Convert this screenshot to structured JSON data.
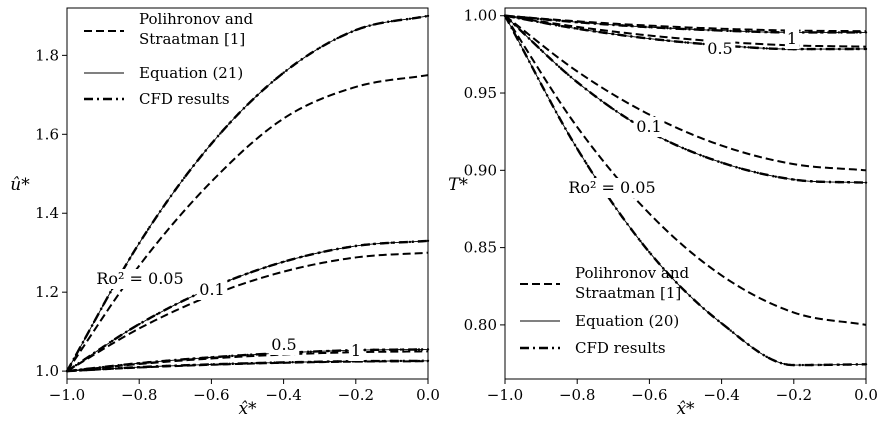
{
  "chart_data": [
    {
      "type": "line",
      "panel": "left",
      "xlabel": "x̂*",
      "ylabel": "û*",
      "xlim": [
        -1.0,
        0.0
      ],
      "ylim": [
        0.98,
        1.92
      ],
      "xticks": [
        "−1.0",
        "−0.8",
        "−0.6",
        "−0.4",
        "−0.2",
        "0.0"
      ],
      "yticks": [
        "1.0",
        "1.2",
        "1.4",
        "1.6",
        "1.8"
      ],
      "legend_position": "top-left",
      "legend": [
        "Polihronov and Straatman [1]",
        "Equation (21)",
        "CFD results"
      ],
      "series": [
        {
          "name": "Ro² = 0.05",
          "x": [
            -1.0,
            -0.8,
            -0.6,
            -0.4,
            -0.2,
            0.0
          ],
          "polihronov": [
            1.0,
            1.267,
            1.48,
            1.64,
            1.72,
            1.75
          ],
          "equation": [
            1.0,
            1.324,
            1.576,
            1.756,
            1.864,
            1.9
          ]
        },
        {
          "name": "0.1",
          "x": [
            -1.0,
            -0.8,
            -0.6,
            -0.4,
            -0.2,
            0.0
          ],
          "polihronov": [
            1.0,
            1.108,
            1.192,
            1.252,
            1.288,
            1.3
          ],
          "equation": [
            1.0,
            1.119,
            1.211,
            1.277,
            1.317,
            1.33
          ]
        },
        {
          "name": "0.5",
          "x": [
            -1.0,
            -0.8,
            -0.6,
            -0.4,
            -0.2,
            0.0
          ],
          "polihronov": [
            1.0,
            1.018,
            1.032,
            1.042,
            1.048,
            1.05
          ],
          "equation": [
            1.0,
            1.02,
            1.035,
            1.046,
            1.053,
            1.055
          ]
        },
        {
          "name": "1",
          "x": [
            -1.0,
            -0.8,
            -0.6,
            -0.4,
            -0.2,
            0.0
          ],
          "polihronov": [
            1.0,
            1.009,
            1.016,
            1.021,
            1.024,
            1.025
          ],
          "equation": [
            1.0,
            1.01,
            1.017,
            1.022,
            1.025,
            1.026
          ]
        }
      ]
    },
    {
      "type": "line",
      "panel": "right",
      "xlabel": "x̂*",
      "ylabel": "T*",
      "xlim": [
        -1.0,
        0.0
      ],
      "ylim": [
        0.765,
        1.005
      ],
      "xticks": [
        "−1.0",
        "−0.8",
        "−0.6",
        "−0.4",
        "−0.2",
        "0.0"
      ],
      "yticks": [
        "0.80",
        "0.85",
        "0.90",
        "0.95",
        "1.00"
      ],
      "legend_position": "bottom-left",
      "legend": [
        "Polihronov and Straatman [1]",
        "Equation (20)",
        "CFD results"
      ],
      "series": [
        {
          "name": "Ro² = 0.05",
          "x": [
            -1.0,
            -0.8,
            -0.6,
            -0.4,
            -0.2,
            0.0
          ],
          "polihronov": [
            1.0,
            0.928,
            0.872,
            0.832,
            0.808,
            0.8
          ],
          "equation": [
            1.0,
            0.914,
            0.847,
            0.801,
            0.774,
            0.7745
          ]
        },
        {
          "name": "0.1",
          "x": [
            -1.0,
            -0.8,
            -0.6,
            -0.4,
            -0.2,
            0.0
          ],
          "polihronov": [
            1.0,
            0.964,
            0.936,
            0.916,
            0.904,
            0.9
          ],
          "equation": [
            1.0,
            0.957,
            0.925,
            0.905,
            0.894,
            0.892
          ]
        },
        {
          "name": "0.5",
          "x": [
            -1.0,
            -0.8,
            -0.6,
            -0.4,
            -0.2,
            0.0
          ],
          "polihronov": [
            1.0,
            0.9928,
            0.9872,
            0.9832,
            0.9808,
            0.98
          ],
          "equation": [
            1.0,
            0.9916,
            0.9852,
            0.9808,
            0.9784,
            0.9785
          ]
        },
        {
          "name": "1",
          "x": [
            -1.0,
            -0.8,
            -0.6,
            -0.4,
            -0.2,
            0.0
          ],
          "polihronov": [
            1.0,
            0.9964,
            0.9936,
            0.9916,
            0.9904,
            0.99
          ],
          "equation": [
            1.0,
            0.9958,
            0.9926,
            0.9904,
            0.9892,
            0.9892
          ]
        }
      ]
    }
  ]
}
